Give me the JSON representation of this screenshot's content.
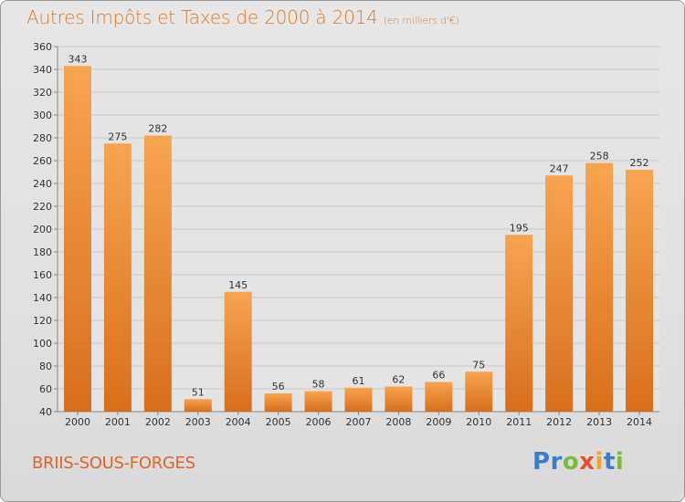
{
  "title": "Autres Impôts et Taxes de 2000 à 2014",
  "subtitle": "(en milliers d'€)",
  "commune": "BRIIS-SOUS-FORGES",
  "logo": {
    "letters": [
      "P",
      "r",
      "o",
      "x",
      "i",
      "t",
      "i"
    ],
    "colors": [
      "#3a7fc8",
      "#3a7fc8",
      "#7dbb3a",
      "#e8512f",
      "#f2a71d",
      "#3a7fc8",
      "#7dbb3a"
    ]
  },
  "colors": {
    "bar_light": "#f7a450",
    "bar_dark": "#d86e1c",
    "grid": "#c8c8c8",
    "axis_text": "#333333",
    "plot_bg": "#e4e4e4"
  },
  "chart_data": {
    "type": "bar",
    "categories": [
      "2000",
      "2001",
      "2002",
      "2003",
      "2004",
      "2005",
      "2006",
      "2007",
      "2008",
      "2009",
      "2010",
      "2011",
      "2012",
      "2013",
      "2014"
    ],
    "values": [
      343,
      275,
      282,
      51,
      145,
      56,
      58,
      61,
      62,
      66,
      75,
      195,
      247,
      258,
      252
    ],
    "ylim": [
      40,
      360
    ],
    "yticks": [
      40,
      60,
      80,
      100,
      120,
      140,
      160,
      180,
      200,
      220,
      240,
      260,
      280,
      300,
      320,
      340,
      360
    ],
    "grid": true
  }
}
